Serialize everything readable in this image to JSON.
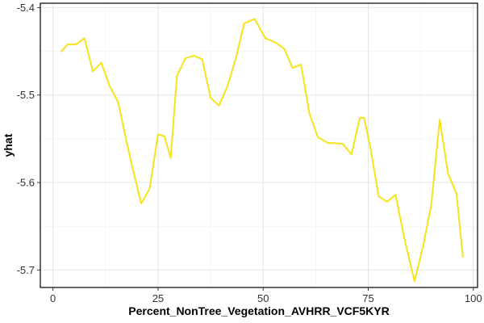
{
  "chart_data": {
    "type": "line",
    "xlabel": "Percent_NonTree_Vegetation_AVHRR_VCF5KYR",
    "ylabel": "yhat",
    "xlim": [
      -3,
      101
    ],
    "ylim": [
      -5.72,
      -5.395
    ],
    "x_ticks": [
      0,
      25,
      50,
      75,
      100
    ],
    "x_tick_labels": [
      "0",
      "25",
      "50",
      "75",
      "100"
    ],
    "y_ticks": [
      -5.4,
      -5.5,
      -5.6,
      -5.7
    ],
    "y_tick_labels": [
      "-5.4",
      "-5.5",
      "-5.6",
      "-5.7"
    ],
    "grid": true,
    "legend": "none",
    "line_color": "#f5e31c",
    "series": [
      {
        "x": [
          2,
          3.5,
          5.5,
          7.5,
          9.5,
          11.5,
          13.5,
          15.5,
          17.5,
          19,
          21,
          23,
          25,
          26.5,
          28,
          29.5,
          31.5,
          33.5,
          35.5,
          37.5,
          39.5,
          41.5,
          43.5,
          45.5,
          48,
          50.5,
          53,
          55,
          57,
          59,
          61,
          63,
          65.5,
          67,
          69,
          71,
          73,
          74,
          75.5,
          77.5,
          79.5,
          81.5,
          83.5,
          86,
          88,
          90,
          92,
          94,
          96,
          97.5
        ],
        "y": [
          -5.45,
          -5.442,
          -5.442,
          -5.435,
          -5.473,
          -5.463,
          -5.49,
          -5.508,
          -5.553,
          -5.585,
          -5.624,
          -5.607,
          -5.545,
          -5.547,
          -5.572,
          -5.478,
          -5.458,
          -5.455,
          -5.459,
          -5.503,
          -5.512,
          -5.49,
          -5.458,
          -5.418,
          -5.413,
          -5.435,
          -5.44,
          -5.447,
          -5.469,
          -5.465,
          -5.521,
          -5.548,
          -5.555,
          -5.555,
          -5.556,
          -5.568,
          -5.526,
          -5.526,
          -5.56,
          -5.616,
          -5.622,
          -5.614,
          -5.662,
          -5.713,
          -5.674,
          -5.625,
          -5.528,
          -5.59,
          -5.613,
          -5.685
        ]
      }
    ]
  }
}
